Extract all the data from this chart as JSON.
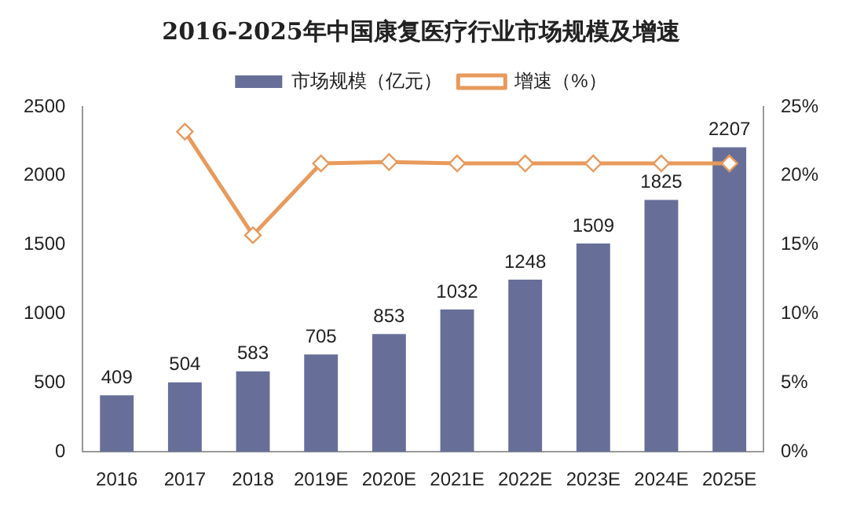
{
  "chart_data": {
    "type": "bar",
    "title": "2016-2025年中国康复医疗行业市场规模及增速",
    "categories": [
      "2016",
      "2017",
      "2018",
      "2019E",
      "2020E",
      "2021E",
      "2022E",
      "2023E",
      "2024E",
      "2025E"
    ],
    "series": [
      {
        "name": "市场规模（亿元）",
        "color": "#676f99",
        "values": [
          409,
          504,
          583,
          705,
          853,
          1032,
          1248,
          1509,
          1825,
          2207
        ],
        "value_labels": [
          "409",
          "504",
          "583",
          "705",
          "853",
          "1032",
          "1248",
          "1509",
          "1825",
          "2207"
        ]
      },
      {
        "name": "增速（%）",
        "type": "line",
        "axis": "y2",
        "color": "#e89a5c",
        "marker": "diamond",
        "values": [
          null,
          23.2,
          15.7,
          20.9,
          21.0,
          20.9,
          20.9,
          20.9,
          20.9,
          20.9
        ]
      }
    ],
    "ylim": [
      0,
      2500
    ],
    "yticks": [
      0,
      500,
      1000,
      1500,
      2000,
      2500
    ],
    "y2lim": [
      0,
      25
    ],
    "y2ticks": [
      {
        "value": 0,
        "label": "0%"
      },
      {
        "value": 5,
        "label": "5%"
      },
      {
        "value": 10,
        "label": "10%"
      },
      {
        "value": 15,
        "label": "15%"
      },
      {
        "value": 20,
        "label": "20%"
      },
      {
        "value": 25,
        "label": "25%"
      }
    ],
    "grid": false,
    "legend": "top"
  }
}
